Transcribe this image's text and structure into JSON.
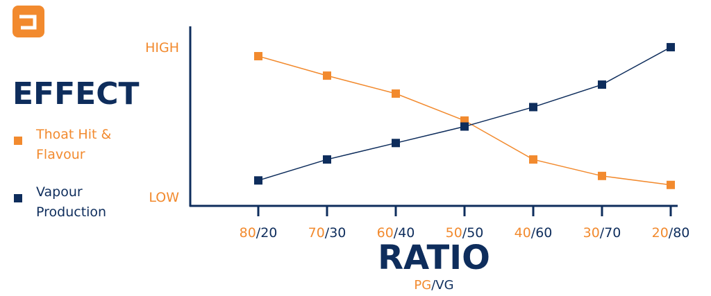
{
  "chart_data": {
    "type": "line",
    "title": "EFFECT",
    "x_label": "RATIO",
    "x_sublabel": "PG/VG",
    "categories": [
      "80/20",
      "70/30",
      "60/40",
      "50/50",
      "40/60",
      "30/70",
      "20/80"
    ],
    "ylim": [
      -0.6,
      11.3
    ],
    "yticks": [
      {
        "value": 10,
        "label": "HIGH"
      },
      {
        "value": 0,
        "label": "LOW"
      }
    ],
    "grid": false,
    "series": [
      {
        "name": "Thoat Hit & Flavour",
        "color": "#f28a2e",
        "values": [
          9.4,
          8.1,
          6.9,
          5.1,
          2.5,
          1.4,
          0.8
        ]
      },
      {
        "name": "Vapour Production",
        "color": "#0e2d5c",
        "values": [
          1.1,
          2.5,
          3.6,
          4.7,
          6.0,
          7.5,
          10.0
        ]
      }
    ]
  }
}
